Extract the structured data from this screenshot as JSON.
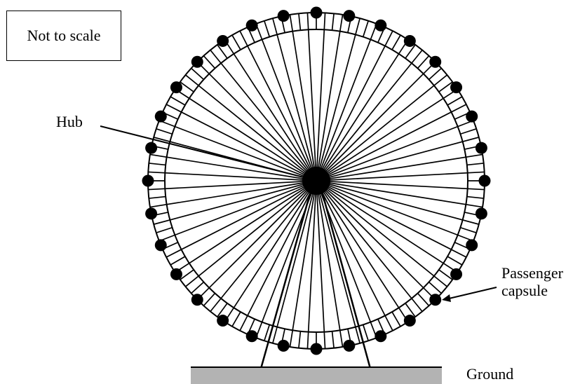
{
  "notes": {
    "scale_note": "Not to scale"
  },
  "labels": {
    "hub": "Hub",
    "capsule_line1": "Passenger",
    "capsule_line2": "capsule",
    "ground": "Ground"
  },
  "wheel": {
    "spoke_count": 60,
    "capsule_count": 32
  },
  "colors": {
    "ink": "#000000",
    "ground_fill": "#b3b3b3",
    "background": "#ffffff"
  }
}
